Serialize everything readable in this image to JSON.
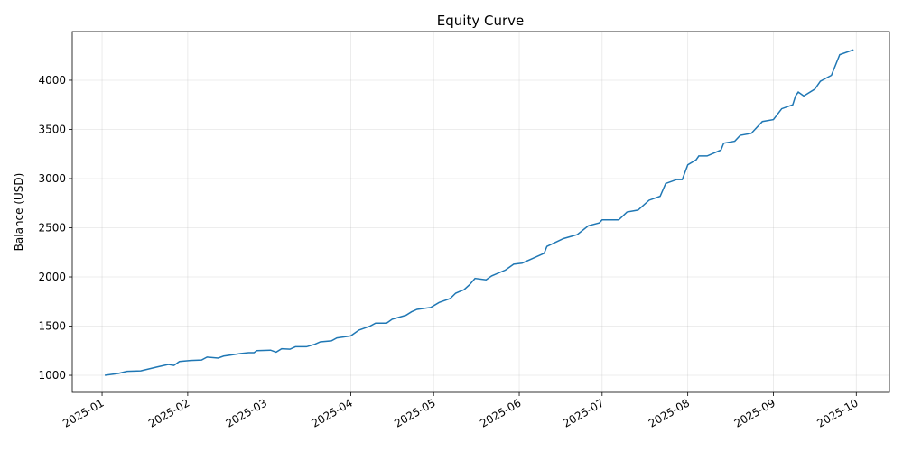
{
  "chart_data": {
    "type": "line",
    "title": "Equity Curve",
    "y_label": "Balance (USD)",
    "x": [
      1,
      6,
      9,
      14,
      20,
      24,
      26,
      28,
      32,
      36,
      38,
      42,
      44,
      50,
      53,
      55,
      56,
      61,
      63,
      65,
      68,
      70,
      74,
      77,
      79,
      83,
      85,
      90,
      93,
      97,
      99,
      103,
      105,
      110,
      112,
      114,
      119,
      122,
      126,
      128,
      131,
      133,
      135,
      139,
      141,
      146,
      149,
      152,
      156,
      160,
      161,
      167,
      172,
      176,
      180,
      181,
      187,
      190,
      194,
      198,
      202,
      204,
      208,
      210,
      212,
      215,
      216,
      219,
      224,
      225,
      229,
      231,
      235,
      239,
      243,
      246,
      250,
      251,
      252,
      254,
      258,
      260,
      264,
      267,
      272
    ],
    "series": [
      {
        "name": "Balance",
        "color": "#1f77b4",
        "values": [
          1000,
          1020,
          1040,
          1045,
          1085,
          1110,
          1100,
          1140,
          1150,
          1155,
          1185,
          1175,
          1195,
          1220,
          1230,
          1230,
          1250,
          1255,
          1235,
          1270,
          1265,
          1290,
          1290,
          1315,
          1340,
          1350,
          1380,
          1400,
          1460,
          1500,
          1530,
          1530,
          1570,
          1610,
          1645,
          1670,
          1690,
          1740,
          1780,
          1835,
          1870,
          1920,
          1985,
          1970,
          2010,
          2070,
          2130,
          2140,
          2190,
          2240,
          2310,
          2390,
          2430,
          2520,
          2550,
          2580,
          2580,
          2660,
          2680,
          2780,
          2820,
          2950,
          2990,
          2990,
          3140,
          3190,
          3230,
          3230,
          3290,
          3360,
          3380,
          3440,
          3460,
          3580,
          3600,
          3710,
          3750,
          3840,
          3880,
          3840,
          3910,
          3990,
          4050,
          4260,
          4310
        ]
      }
    ],
    "xlim": [
      -10.8,
      285
    ],
    "xticks": [
      {
        "value": 0,
        "label": "2025-01"
      },
      {
        "value": 31,
        "label": "2025-02"
      },
      {
        "value": 59,
        "label": "2025-03"
      },
      {
        "value": 90,
        "label": "2025-04"
      },
      {
        "value": 120,
        "label": "2025-05"
      },
      {
        "value": 151,
        "label": "2025-06"
      },
      {
        "value": 181,
        "label": "2025-07"
      },
      {
        "value": 212,
        "label": "2025-08"
      },
      {
        "value": 243,
        "label": "2025-09"
      },
      {
        "value": 273,
        "label": "2025-10"
      }
    ],
    "ylim": [
      826,
      4495
    ],
    "yticks": [
      1000,
      1500,
      2000,
      2500,
      3000,
      3500,
      4000
    ],
    "grid": true
  }
}
